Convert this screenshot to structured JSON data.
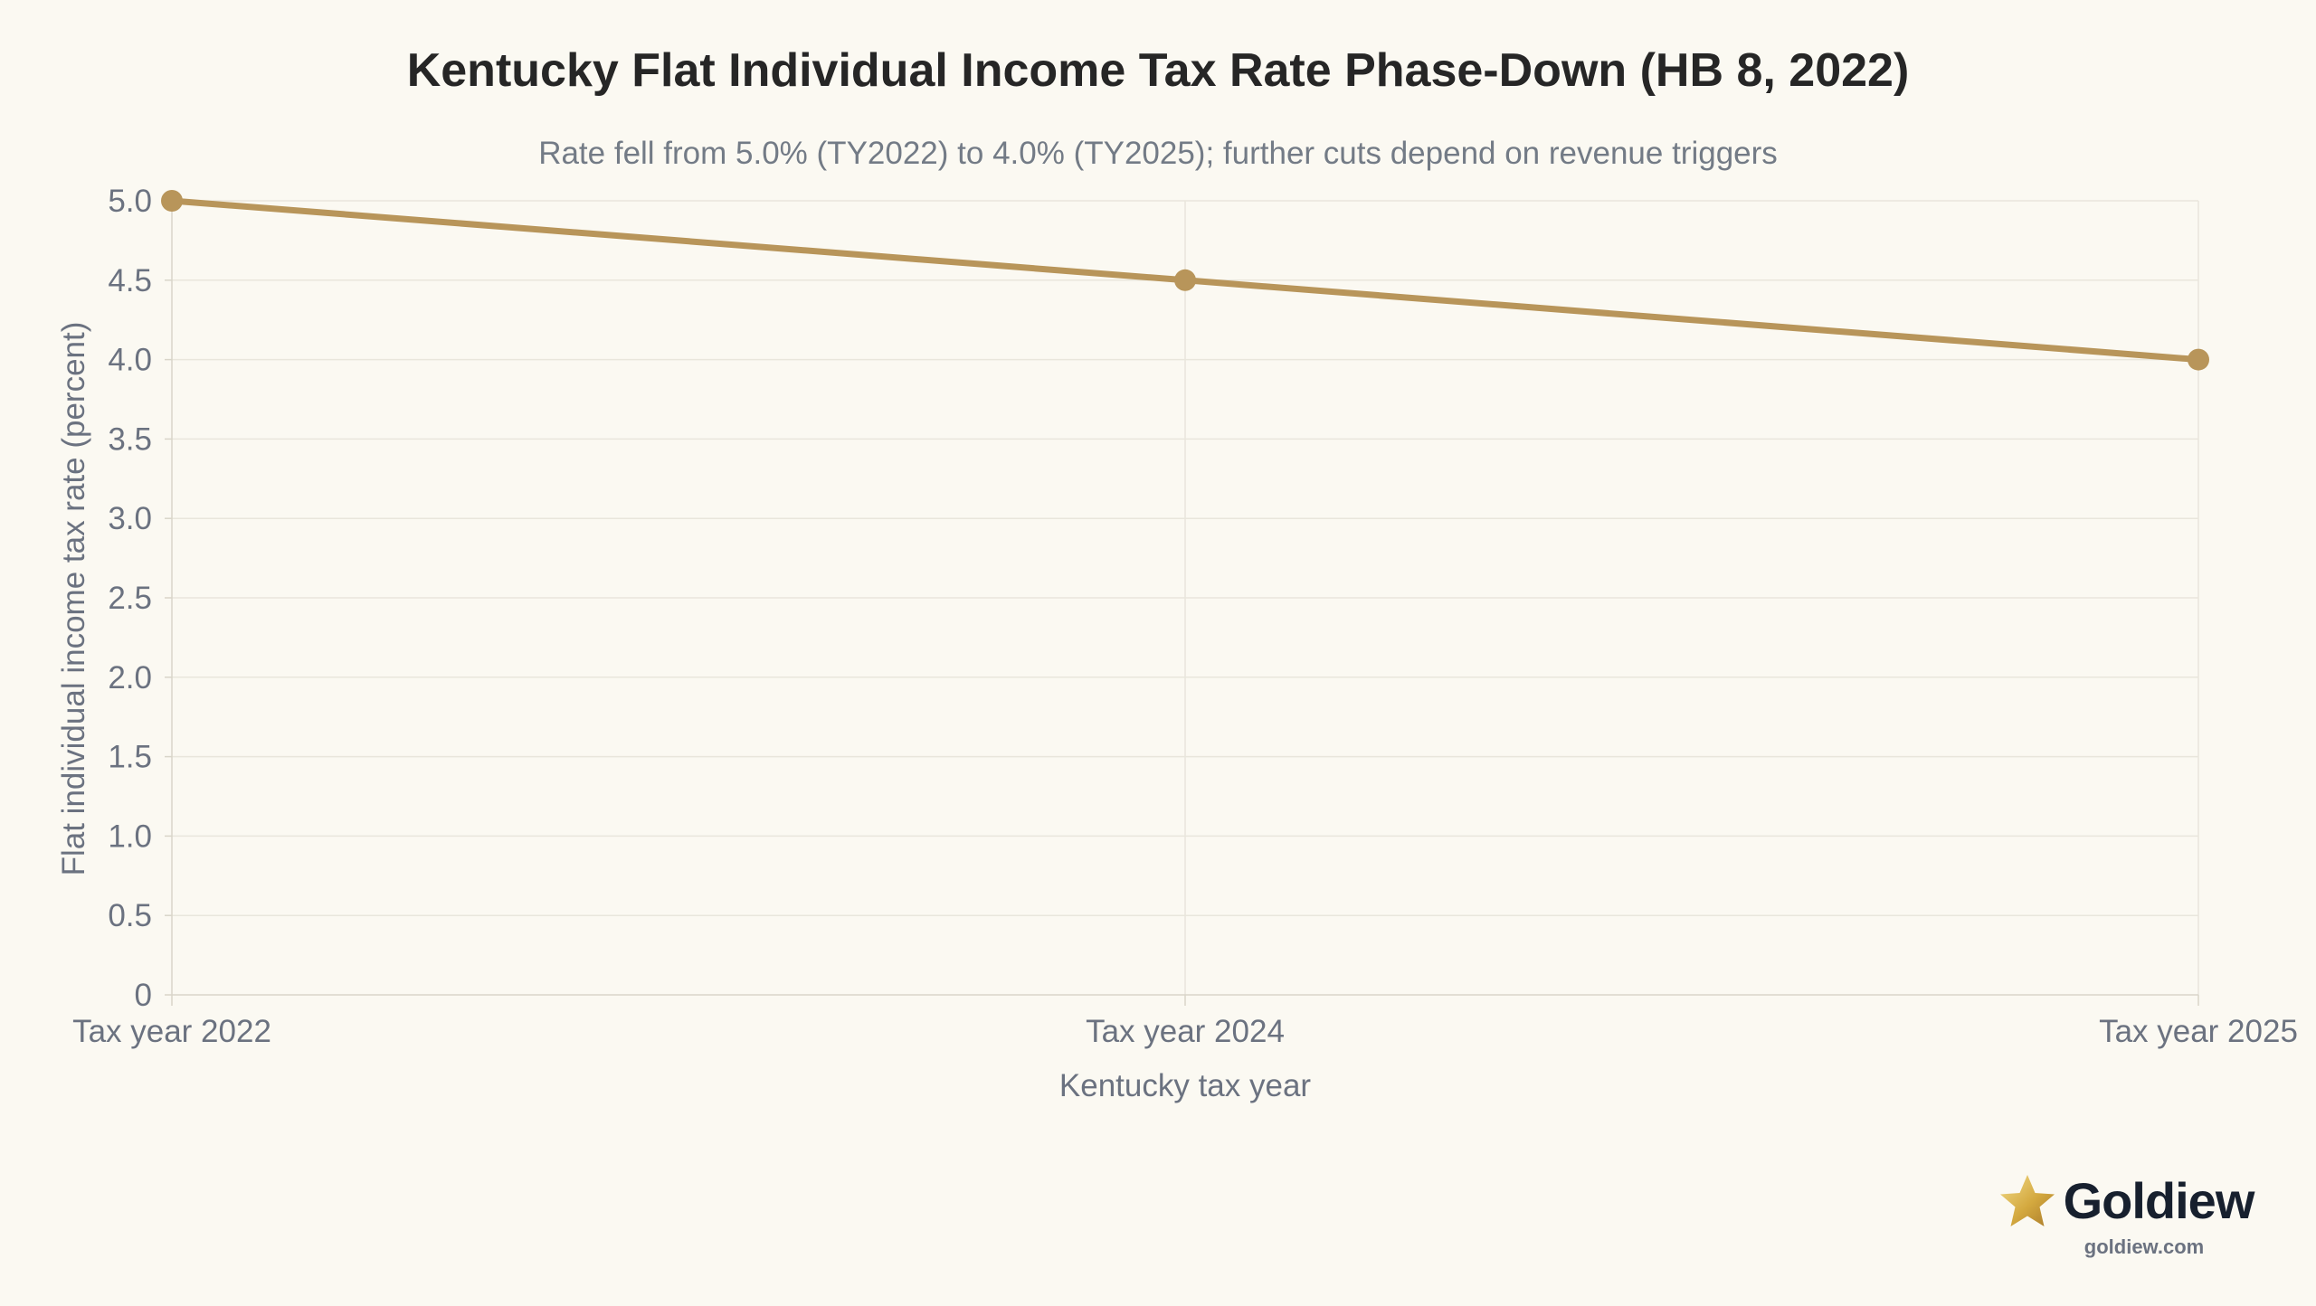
{
  "chart_data": {
    "type": "line",
    "title": "Kentucky Flat Individual Income Tax Rate Phase-Down (HB 8, 2022)",
    "subtitle": "Rate fell from 5.0% (TY2022) to 4.0% (TY2025); further cuts depend on revenue triggers",
    "xlabel": "Kentucky tax year",
    "ylabel": "Flat individual income tax rate (percent)",
    "categories": [
      "Tax year 2022",
      "Tax year 2024",
      "Tax year 2025"
    ],
    "series": [
      {
        "values": [
          5.0,
          4.5,
          4.0
        ],
        "color": "#b8955a"
      }
    ],
    "ylim": [
      0,
      5
    ],
    "yticks": [
      0,
      0.5,
      1,
      1.5,
      2,
      2.5,
      3,
      3.5,
      4,
      4.5,
      5
    ],
    "ytick_labels": [
      "0",
      "0.5",
      "1.0",
      "1.5",
      "2.0",
      "2.5",
      "3.0",
      "3.5",
      "4.0",
      "4.5",
      "5.0"
    ],
    "grid": true,
    "legend": "none"
  },
  "brand": {
    "name": "Goldiew",
    "url": "goldiew.com",
    "icon": "star-icon"
  },
  "colors": {
    "background": "#fbf9f2",
    "line": "#b8955a",
    "grid": "#e9e6dc",
    "text": "#6b7280",
    "title": "#262626"
  }
}
